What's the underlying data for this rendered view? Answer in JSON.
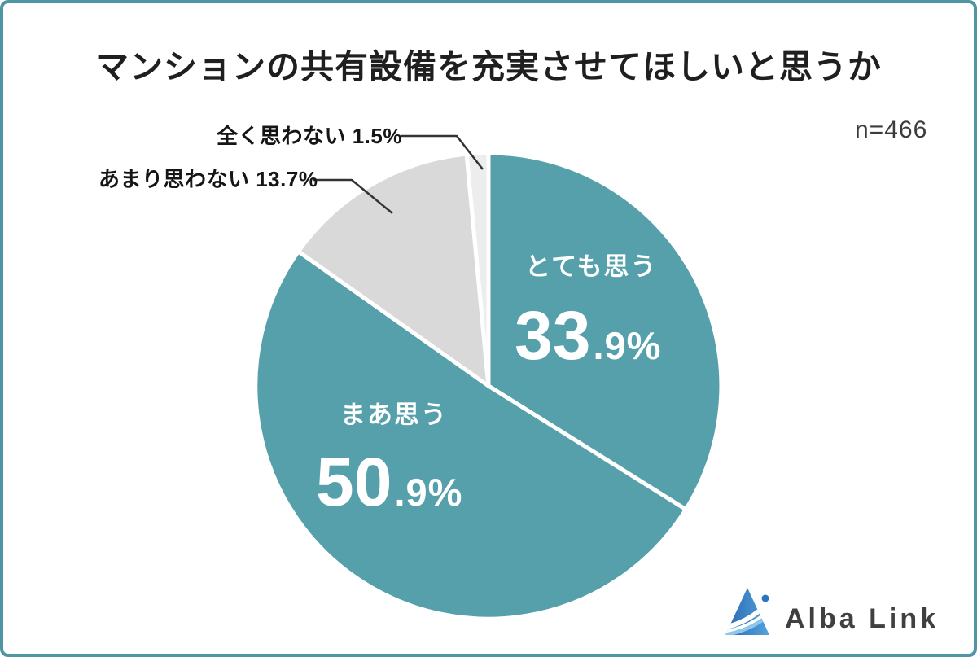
{
  "title": "マンションの共有設備を充実させてほしいと思うか",
  "sample_size": "n=466",
  "chart_data": {
    "type": "pie",
    "title": "マンションの共有設備を充実させてほしいと思うか",
    "sample_size_label": "n=466",
    "start_angle_deg": 0,
    "direction": "clockwise-from-top",
    "series": [
      {
        "label": "とても思う",
        "value": 33.9,
        "color": "#55a0ab",
        "label_style": "inside-white"
      },
      {
        "label": "まあ思う",
        "value": 50.9,
        "color": "#55a0ab",
        "label_style": "inside-white"
      },
      {
        "label": "あまり思わない",
        "value": 13.7,
        "color": "#d9d9d9",
        "label_style": "outside-callout"
      },
      {
        "label": "全く思わない",
        "value": 1.5,
        "color": "#ededed",
        "label_style": "outside-callout"
      }
    ],
    "legend": "none",
    "slice_divider_color": "#ffffff"
  },
  "inside_labels": {
    "totemo": {
      "name": "とても思う",
      "big": "33",
      "small": ".9%"
    },
    "maa": {
      "name": "まあ思う",
      "big": "50",
      "small": ".9%"
    }
  },
  "callout_labels": {
    "mattaku": "全く思わない 1.5%",
    "amari": "あまり思わない 13.7%"
  },
  "logo": {
    "text": "Alba Link"
  },
  "colors": {
    "teal": "#55a0ab",
    "gray": "#d9d9d9",
    "light_gray": "#ededed",
    "card_border": "#4e96a4",
    "leader_line": "#333333",
    "logo_blue_dark": "#2a67b0",
    "logo_blue_light": "#56a6e0",
    "logo_dot_blue": "#2d74c0"
  }
}
